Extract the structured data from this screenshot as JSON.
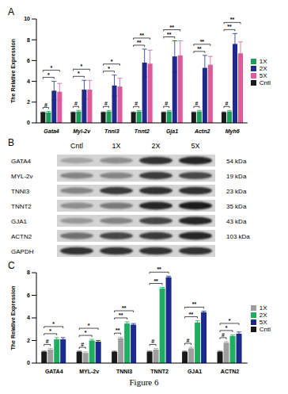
{
  "chart_data": [
    {
      "type": "bar",
      "title": "A",
      "y_label": "The Relative Expression",
      "categories": [
        "Gata4",
        "Myl-2v",
        "Tnni3",
        "Tnnt2",
        "Gja1",
        "Actn2",
        "Myh6"
      ],
      "series": [
        {
          "name": "Cntl",
          "color": "#1a1a1a",
          "values": [
            1,
            1,
            1,
            1,
            1,
            1,
            1
          ],
          "errors": [
            0.05,
            0.05,
            0.05,
            0.05,
            0.05,
            0.05,
            0.05
          ]
        },
        {
          "name": "1X",
          "color": "#1a9e5a",
          "values": [
            1,
            1.1,
            1.1,
            1.1,
            1.1,
            1.1,
            1.1
          ],
          "errors": [
            0.1,
            0.1,
            0.1,
            0.1,
            0.1,
            0.1,
            0.1
          ],
          "significance": [
            "#",
            "#",
            "#",
            "#",
            "#",
            "#",
            "#"
          ]
        },
        {
          "name": "2X",
          "color": "#1f2a8c",
          "values": [
            3.1,
            3.2,
            3.6,
            5.8,
            6.4,
            5.3,
            7.6
          ],
          "errors": [
            0.9,
            0.9,
            1.0,
            1.3,
            1.5,
            1.2,
            1.0
          ],
          "significance": [
            "*",
            "*",
            "*",
            "**",
            "**",
            "**",
            "**"
          ]
        },
        {
          "name": "5X",
          "color": "#de5b9b",
          "values": [
            3.0,
            3.2,
            3.5,
            5.7,
            6.5,
            5.6,
            6.7
          ],
          "errors": [
            0.8,
            0.9,
            0.8,
            1.3,
            1.4,
            0.8,
            1.1
          ],
          "significance": [
            "*",
            "*",
            "*",
            "**",
            "**",
            "**",
            "**"
          ]
        }
      ],
      "ylim": [
        0,
        10
      ],
      "yticks": [
        0,
        2,
        4,
        6,
        8,
        10
      ],
      "grid": false,
      "legend": "right"
    },
    {
      "type": "bar",
      "title": "C",
      "y_label": "The Relative Expression",
      "categories": [
        "GATA4",
        "MYL-2v",
        "TNNI3",
        "TNNT2",
        "GJA1",
        "ACTN2"
      ],
      "series": [
        {
          "name": "Cntl",
          "color": "#1a1a1a",
          "values": [
            1,
            1,
            1,
            1,
            1,
            1
          ],
          "errors": [
            0.05,
            0.05,
            0.05,
            0.05,
            0.05,
            0.05
          ]
        },
        {
          "name": "1X",
          "color": "#9e9e9e",
          "values": [
            1.2,
            0.9,
            2.2,
            1.2,
            1.3,
            1.8
          ],
          "errors": [
            0.1,
            0.1,
            0.1,
            0.1,
            0.1,
            0.1
          ],
          "significance": [
            "#",
            "#",
            "**",
            "#",
            "#",
            "#"
          ]
        },
        {
          "name": "2X",
          "color": "#1fae5f",
          "values": [
            2.1,
            2.0,
            3.5,
            6.6,
            3.6,
            2.4
          ],
          "errors": [
            0.15,
            0.1,
            0.15,
            0.1,
            0.15,
            0.1
          ],
          "significance": [
            "*",
            "*",
            "**",
            "**",
            "**",
            "*"
          ]
        },
        {
          "name": "5X",
          "color": "#1c2a8e",
          "values": [
            2.1,
            1.9,
            3.4,
            7.6,
            4.5,
            2.6
          ],
          "errors": [
            0.15,
            0.1,
            0.1,
            0.1,
            0.1,
            0.15
          ],
          "significance": [
            "*",
            "*",
            "**",
            "**",
            "**",
            "*"
          ]
        }
      ],
      "ylim": [
        0,
        8
      ],
      "yticks": [
        0,
        2,
        4,
        6,
        8
      ],
      "grid": false,
      "legend": "right"
    }
  ],
  "blot": {
    "title": "B",
    "lanes": [
      "Cntl",
      "1X",
      "2X",
      "5X"
    ],
    "rows": [
      {
        "label": "GATA4",
        "size": "54 kDa",
        "band_intensity": [
          0.35,
          0.45,
          0.9,
          0.95
        ]
      },
      {
        "label": "MYL-2v",
        "size": "19 kDa",
        "band_intensity": [
          0.5,
          0.5,
          0.85,
          0.8
        ]
      },
      {
        "label": "TNNI3",
        "size": "23 kDa",
        "band_intensity": [
          0.5,
          0.85,
          0.9,
          0.9
        ]
      },
      {
        "label": "TNNT2",
        "size": "35 kDa",
        "band_intensity": [
          0.45,
          0.55,
          0.95,
          1
        ]
      },
      {
        "label": "GJA1",
        "size": "43 kDa",
        "band_intensity": [
          0.4,
          0.5,
          0.8,
          0.95
        ]
      },
      {
        "label": "ACTN2",
        "size": "103 kDa",
        "band_intensity": [
          0.6,
          0.8,
          0.85,
          0.95
        ]
      },
      {
        "label": "GAPDH",
        "band_intensity": [
          0.9,
          0.9,
          0.9,
          0.9
        ]
      }
    ]
  },
  "caption": "Figure 6"
}
